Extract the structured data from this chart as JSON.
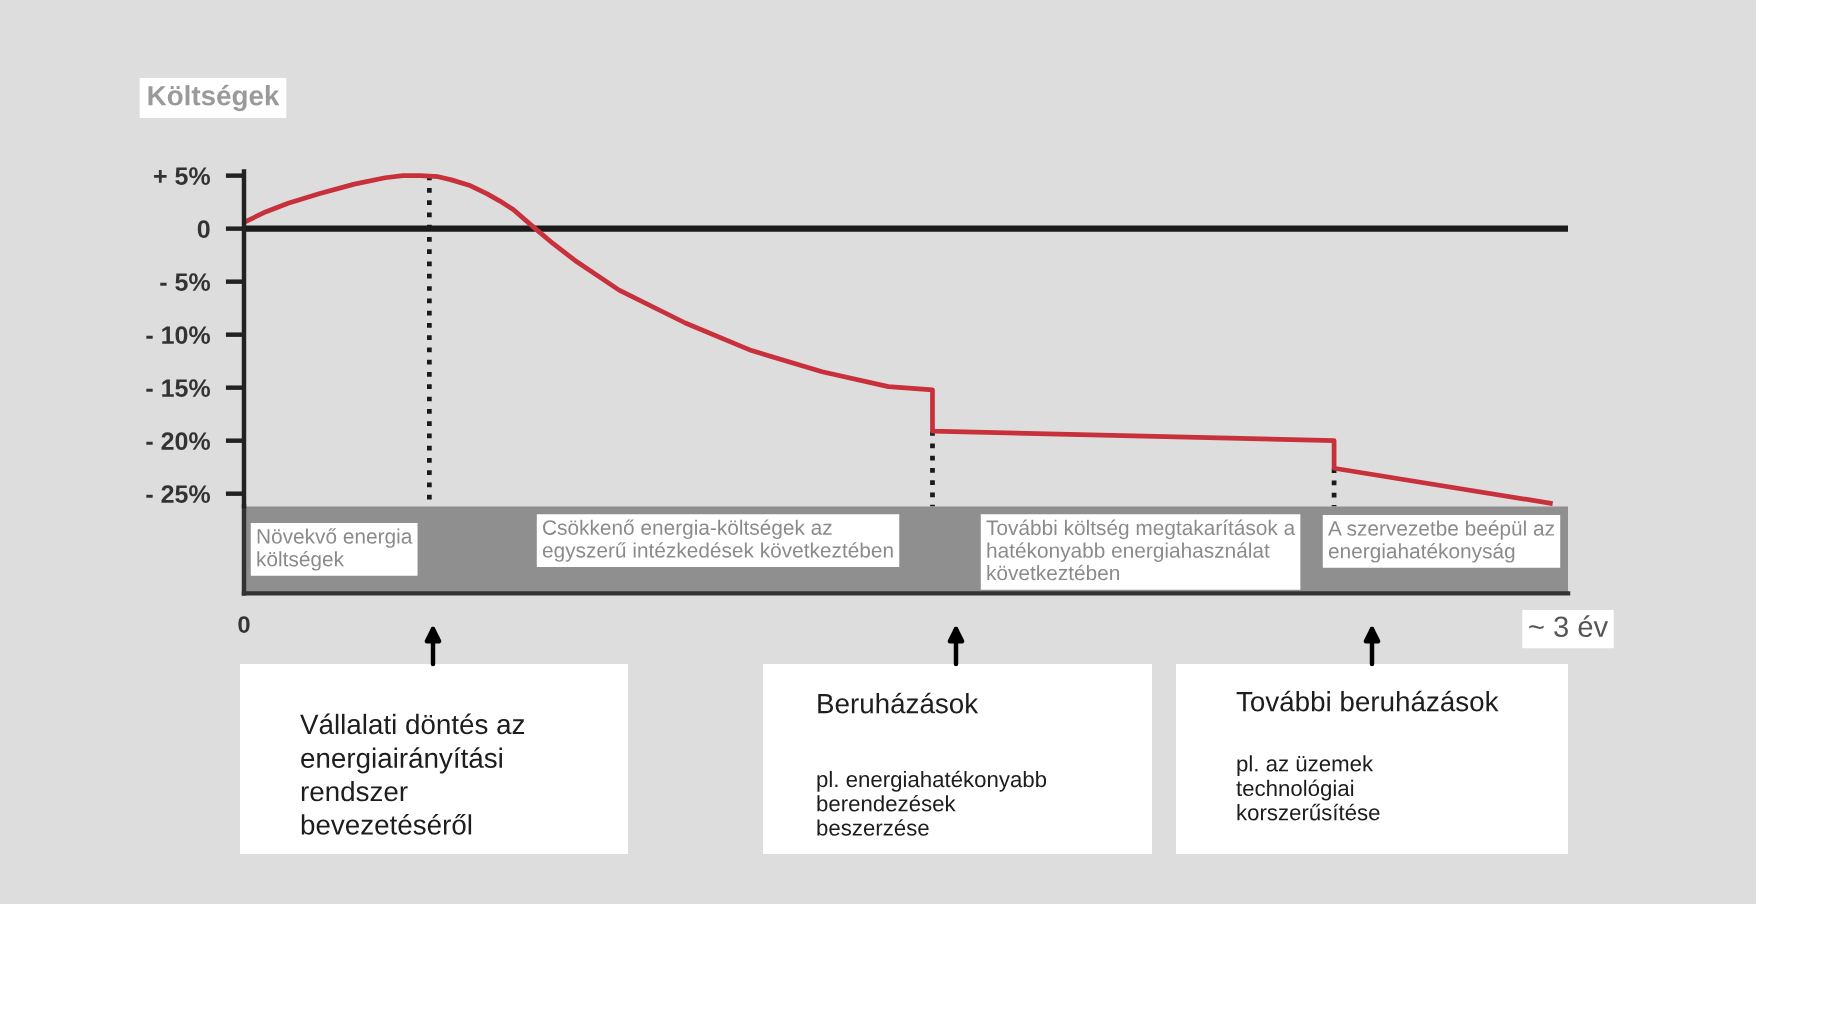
{
  "chart_data": {
    "type": "line",
    "ylabel": "Költségek",
    "xlim": [
      0,
      3
    ],
    "xticks": [
      0,
      {
        "value": 3,
        "label": "~ 3 év"
      }
    ],
    "ylim": [
      -26.2,
      5.4
    ],
    "yticks": [
      {
        "value": 5,
        "label": "+ 5%"
      },
      0,
      {
        "value": -5,
        "label": "- 5%"
      },
      {
        "value": -10,
        "label": "- 10%"
      },
      {
        "value": -15,
        "label": "- 15%"
      },
      {
        "value": -20,
        "label": "- 20%"
      },
      {
        "value": -25,
        "label": "- 25%"
      }
    ],
    "ref_lines": [
      {
        "axis": "y",
        "value": 0,
        "color": "#1a1a1a"
      }
    ],
    "series": [
      {
        "color": "#c8303c",
        "x": [
          0,
          0.05,
          0.1,
          0.17,
          0.25,
          0.32,
          0.36,
          0.4,
          0.44,
          0.47,
          0.51,
          0.55,
          0.58,
          0.61,
          0.66,
          0.7,
          0.75,
          0.85,
          1.0,
          1.15,
          1.31,
          1.46,
          1.56,
          1.56,
          2.47,
          2.47,
          2.96
        ],
        "values": [
          0.6,
          1.6,
          2.4,
          3.3,
          4.2,
          4.8,
          5.0,
          5.0,
          4.9,
          4.6,
          4.1,
          3.3,
          2.6,
          1.8,
          0,
          -1.4,
          -3.0,
          -5.8,
          -8.9,
          -11.5,
          -13.5,
          -14.9,
          -15.2,
          -19.1,
          -20.0,
          -22.6,
          -25.9
        ]
      },
      {
        "color": "#1a1a1a",
        "line_style": "dotted",
        "x": [
          0.42,
          0.42
        ],
        "values": [
          5.0,
          -26.2
        ]
      },
      {
        "color": "#1a1a1a",
        "line_style": "dotted",
        "x": [
          1.56,
          1.56
        ],
        "values": [
          -19.1,
          -26.2
        ]
      },
      {
        "color": "#1a1a1a",
        "line_style": "dotted",
        "x": [
          2.47,
          2.47
        ],
        "values": [
          -22.6,
          -26.2
        ]
      }
    ],
    "annotations": [
      "Növekvő energia\nköltségek",
      "Csökkenő energia-költségek az\negyszerű intézkedések következtében",
      "További költség megtakarítások a\nhatékonyabb energiahasználat\nkövetkeztében",
      "A szervezetbe beépül az\nenergiahatékonyság",
      "Vállalati döntés az\nenergiairányítási\nrendszer\nbevezetéséről",
      "Beruházások",
      "pl. energiahatékonyabb\nberendezések\nbeszerzése",
      "További beruházások",
      "pl. az üzemek\ntechnológiai\nkorszerűsítése"
    ]
  }
}
